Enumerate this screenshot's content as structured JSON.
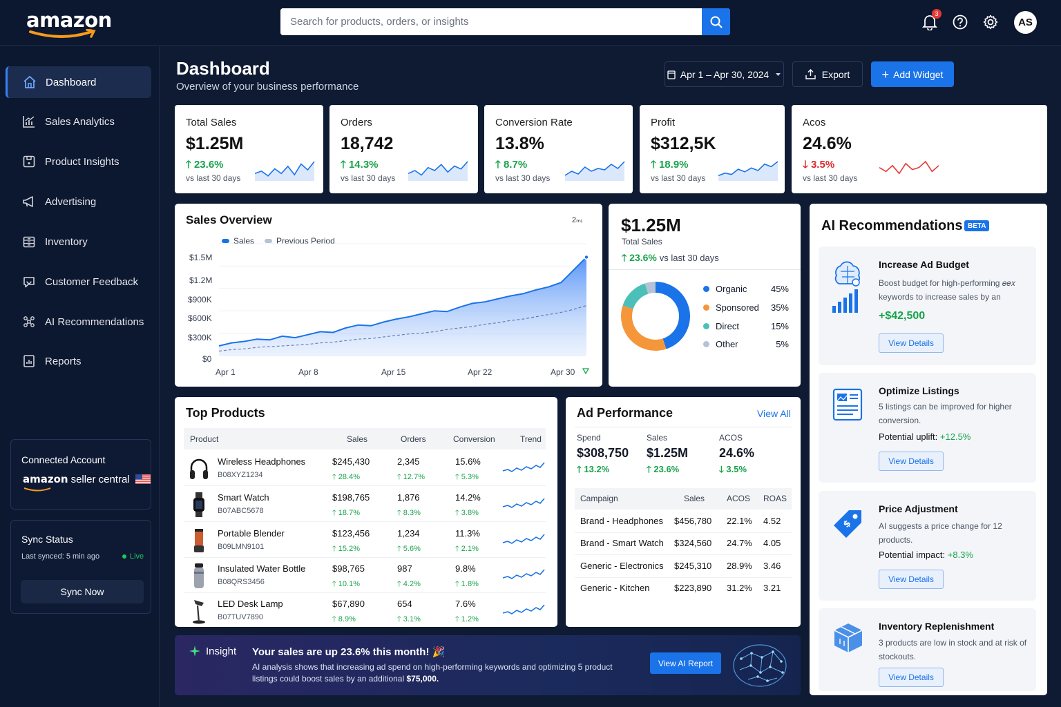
{
  "header": {
    "logo": "amazon",
    "search_placeholder": "Search for products, orders, or insights",
    "notifications_count": "3",
    "avatar": "AS"
  },
  "sidebar": {
    "items": [
      {
        "label": "Dashboard",
        "icon": "home-icon"
      },
      {
        "label": "Sales Analytics",
        "icon": "chart-icon"
      },
      {
        "label": "Product Insights",
        "icon": "box-icon"
      },
      {
        "label": "Advertising",
        "icon": "megaphone-icon"
      },
      {
        "label": "Inventory",
        "icon": "inventory-icon"
      },
      {
        "label": "Customer Feedback",
        "icon": "feedback-icon"
      },
      {
        "label": "AI Recommendations",
        "icon": "ai-icon"
      },
      {
        "label": "Reports",
        "icon": "report-icon"
      }
    ],
    "connected": {
      "title": "Connected Account",
      "brand": "amazon",
      "brand_suffix": "seller central"
    },
    "sync": {
      "title": "Sync Status",
      "last": "Last synced: 5 min ago",
      "live": "Live",
      "button": "Sync Now"
    }
  },
  "page": {
    "title": "Dashboard",
    "subtitle": "Overview of your business performance",
    "date_range": "Apr 1 – Apr 30, 2024",
    "export": "Export",
    "add_widget": "Add Widget"
  },
  "kpis": [
    {
      "label": "Total Sales",
      "value": "$1.25M",
      "change": "23.6%",
      "dir": "up",
      "cmp": "vs last 30 days"
    },
    {
      "label": "Orders",
      "value": "18,742",
      "change": "14.3%",
      "dir": "up",
      "cmp": "vs last 30 days"
    },
    {
      "label": "Conversion Rate",
      "value": "13.8%",
      "change": "8.7%",
      "dir": "up",
      "cmp": "vs last 30 days"
    },
    {
      "label": "Profit",
      "value": "$312,5K",
      "change": "18.9%",
      "dir": "up",
      "cmp": "vs last 30 days"
    },
    {
      "label": "Acos",
      "value": "24.6%",
      "change": "3.5%",
      "dir": "down",
      "cmp": "vs last 30 days"
    }
  ],
  "sales_overview": {
    "title": "Sales Overview",
    "menu_glyph": "2ₘᵢ",
    "legend": [
      "Sales",
      "Previous Period"
    ],
    "yticks": [
      "$1.5M",
      "$1.2M",
      "$900K",
      "$600K",
      "$300K",
      "$0"
    ],
    "xticks": [
      "Apr 1",
      "Apr 8",
      "Apr 15",
      "Apr 22",
      "Apr 30"
    ]
  },
  "chart_data": {
    "type": "area",
    "xlabel": "",
    "ylabel": "",
    "x": [
      "Apr 1",
      "Apr 2",
      "Apr 3",
      "Apr 4",
      "Apr 5",
      "Apr 6",
      "Apr 7",
      "Apr 8",
      "Apr 9",
      "Apr 10",
      "Apr 11",
      "Apr 12",
      "Apr 13",
      "Apr 14",
      "Apr 15",
      "Apr 16",
      "Apr 17",
      "Apr 18",
      "Apr 19",
      "Apr 20",
      "Apr 21",
      "Apr 22",
      "Apr 23",
      "Apr 24",
      "Apr 25",
      "Apr 26",
      "Apr 27",
      "Apr 28",
      "Apr 29",
      "Apr 30"
    ],
    "ylim": [
      0,
      1500000
    ],
    "series": [
      {
        "name": "Sales",
        "values": [
          130000,
          170000,
          190000,
          220000,
          210000,
          260000,
          240000,
          280000,
          320000,
          310000,
          370000,
          410000,
          400000,
          450000,
          490000,
          520000,
          560000,
          600000,
          590000,
          650000,
          700000,
          720000,
          760000,
          800000,
          830000,
          880000,
          920000,
          980000,
          1150000,
          1320000
        ]
      },
      {
        "name": "Previous Period",
        "values": [
          60000,
          80000,
          90000,
          110000,
          120000,
          130000,
          140000,
          150000,
          170000,
          180000,
          200000,
          220000,
          230000,
          250000,
          270000,
          290000,
          300000,
          320000,
          350000,
          370000,
          390000,
          420000,
          440000,
          470000,
          490000,
          520000,
          550000,
          580000,
          620000,
          670000
        ]
      }
    ]
  },
  "sales_summary": {
    "value": "$1.25M",
    "label": "Total Sales",
    "change": "23.6%",
    "cmp": "vs last 30 days",
    "segments": [
      {
        "name": "Organic",
        "pct": "45%",
        "value": 45,
        "color": "#1a73e8"
      },
      {
        "name": "Sponsored",
        "pct": "35%",
        "value": 35,
        "color": "#f5963a"
      },
      {
        "name": "Direct",
        "pct": "15%",
        "value": 15,
        "color": "#4cc0b8"
      },
      {
        "name": "Other",
        "pct": "5%",
        "value": 5,
        "color": "#b4c3d6"
      }
    ]
  },
  "top_products": {
    "title": "Top Products",
    "columns": [
      "Product",
      "Sales",
      "Orders",
      "Conversion",
      "Trend"
    ],
    "rows": [
      {
        "name": "Wireless Headphones",
        "sku": "B08XYZ1234",
        "sales": "$245,430",
        "sales_chg": "28.4%",
        "orders": "2,345",
        "orders_chg": "12.7%",
        "conv": "15.6%",
        "conv_chg": "5.3%"
      },
      {
        "name": "Smart Watch",
        "sku": "B07ABC5678",
        "sales": "$198,765",
        "sales_chg": "18.7%",
        "orders": "1,876",
        "orders_chg": "8.3%",
        "conv": "14.2%",
        "conv_chg": "3.8%"
      },
      {
        "name": "Portable Blender",
        "sku": "B09LMN9101",
        "sales": "$123,456",
        "sales_chg": "15.2%",
        "orders": "1,234",
        "orders_chg": "5.6%",
        "conv": "11.3%",
        "conv_chg": "2.1%"
      },
      {
        "name": "Insulated Water Bottle",
        "sku": "B08QRS3456",
        "sales": "$98,765",
        "sales_chg": "10.1%",
        "orders": "987",
        "orders_chg": "4.2%",
        "conv": "9.8%",
        "conv_chg": "1.8%"
      },
      {
        "name": "LED Desk Lamp",
        "sku": "B07TUV7890",
        "sales": "$67,890",
        "sales_chg": "8.9%",
        "orders": "654",
        "orders_chg": "3.1%",
        "conv": "7.6%",
        "conv_chg": "1.2%"
      }
    ]
  },
  "ad_performance": {
    "title": "Ad Performance",
    "view_all": "View All",
    "stats": [
      {
        "label": "Spend",
        "value": "$308,750",
        "change": "13.2%",
        "dir": "up"
      },
      {
        "label": "Sales",
        "value": "$1.25M",
        "change": "23.6%",
        "dir": "up"
      },
      {
        "label": "ACOS",
        "value": "24.6%",
        "change": "3.5%",
        "dir": "down"
      }
    ],
    "columns": [
      "Campaign",
      "Sales",
      "ACOS",
      "ROAS"
    ],
    "rows": [
      {
        "campaign": "Brand - Headphones",
        "sales": "$456,780",
        "acos": "22.1%",
        "roas": "4.52"
      },
      {
        "campaign": "Brand - Smart Watch",
        "sales": "$324,560",
        "acos": "24.7%",
        "roas": "4.05"
      },
      {
        "campaign": "Generic - Electronics",
        "sales": "$245,310",
        "acos": "28.9%",
        "roas": "3.46"
      },
      {
        "campaign": "Generic - Kitchen",
        "sales": "$223,890",
        "acos": "31.2%",
        "roas": "3.21"
      }
    ]
  },
  "ai_recs": {
    "title": "AI Recommendations",
    "badge": "BETA",
    "cards": [
      {
        "title": "Increase Ad Budget",
        "desc": "Boost budget for high-performing 𝑒𝑒𝑥 keywords to increase sales by an",
        "value": "+$42,500",
        "button": "View Details"
      },
      {
        "title": "Optimize Listings",
        "desc": "5 listings can be improved for higher conversion.",
        "metric_label": "Potential uplift:",
        "metric_value": "+12.5%",
        "button": "View Details"
      },
      {
        "title": "Price Adjustment",
        "desc": "AI suggests a price change for 12 products.",
        "metric_label": "Potential impact:",
        "metric_value": "+8.3%",
        "button": "View Details"
      },
      {
        "title": "Inventory Replenishment",
        "desc": "3 products are low in stock and at risk of stockouts.",
        "button": "View Details"
      }
    ]
  },
  "insight": {
    "label": "Insight",
    "headline": "Your sales are up 23.6% this month! 🎉",
    "body": "AI analysis shows that increasing ad spend on high-performing keywords and optimizing 5 product listings could boost sales by an additional",
    "body_strong": "$75,000.",
    "button": "View AI Report"
  }
}
